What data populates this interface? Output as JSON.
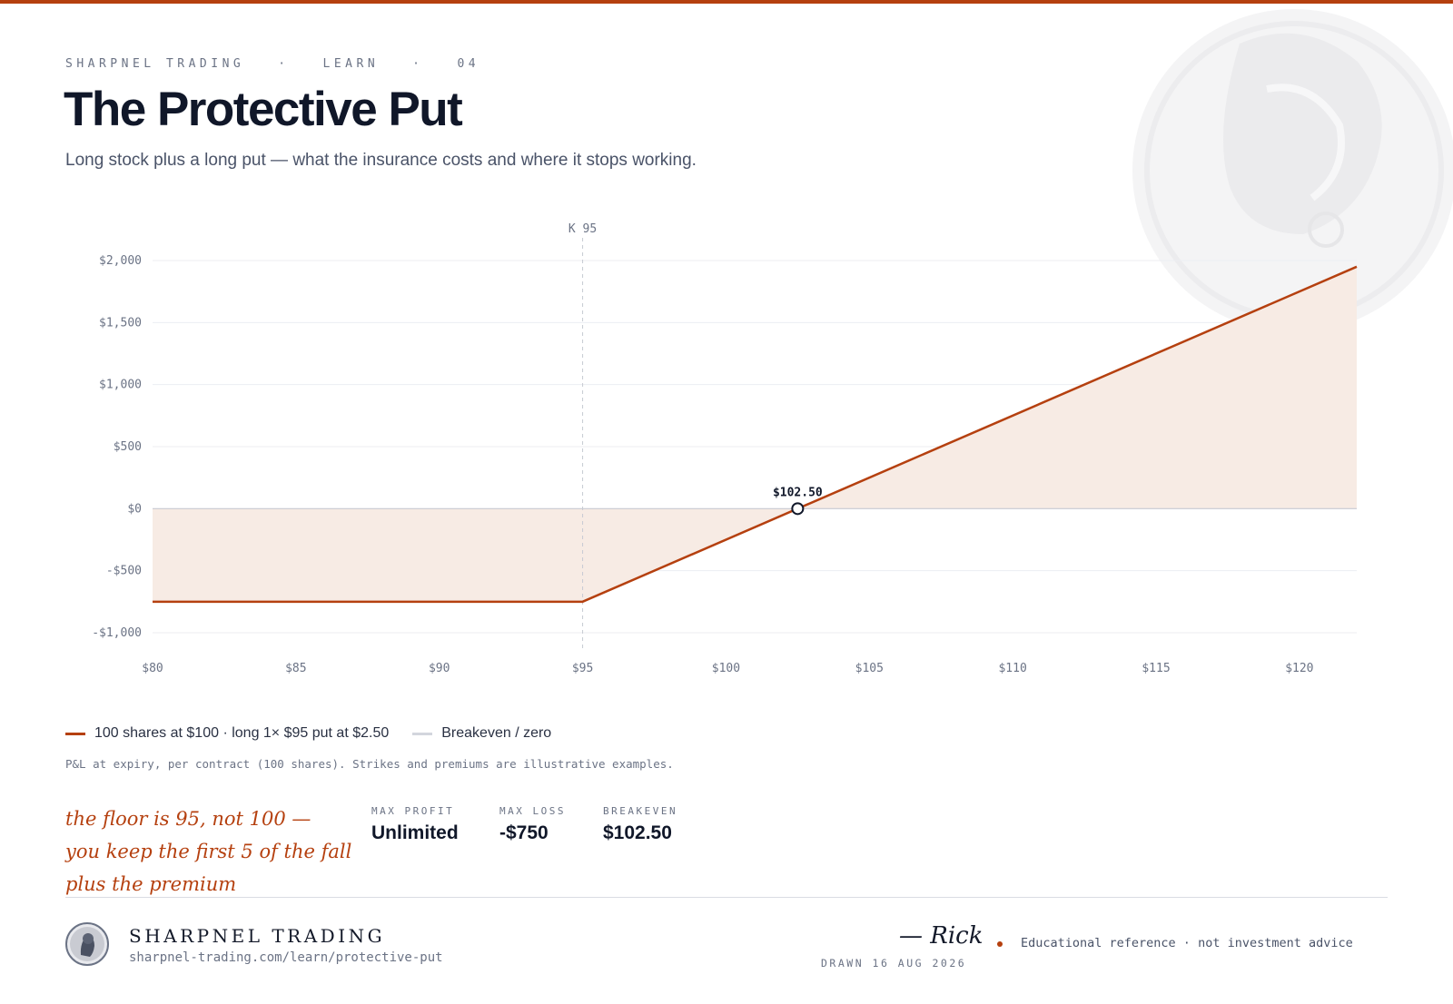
{
  "header": {
    "eyebrow_brand": "SHARPNEL TRADING",
    "eyebrow_section": "LEARN",
    "eyebrow_number": "04",
    "eyebrow_separator": "·",
    "title": "The Protective Put",
    "subtitle": "Long stock plus a long put — what the insurance costs and where it stops working."
  },
  "chart_data": {
    "type": "line",
    "x_tick_labels": [
      "$80",
      "$85",
      "$90",
      "$95",
      "$100",
      "$105",
      "$110",
      "$115",
      "$120"
    ],
    "x_ticks": [
      80,
      85,
      90,
      95,
      100,
      105,
      110,
      115,
      120
    ],
    "y_tick_labels": [
      "$2,000",
      "$1,500",
      "$1,000",
      "$500",
      "$0",
      "-$500",
      "-$1,000"
    ],
    "y_ticks": [
      2000,
      1500,
      1000,
      500,
      0,
      -500,
      -1000
    ],
    "xlim": [
      80,
      122
    ],
    "ylim": [
      -1000,
      2000
    ],
    "grid": true,
    "series": [
      {
        "name": "100 shares at $100 · long 1× $95 put at $2.50",
        "x": [
          80,
          95,
          122
        ],
        "y": [
          -750,
          -750,
          1950
        ],
        "color": "#b5400f"
      }
    ],
    "zero_line": {
      "name": "Breakeven / zero",
      "color": "#d3d6dd"
    },
    "strike_marker": {
      "x": 95,
      "label": "K 95"
    },
    "breakeven_marker": {
      "x": 102.5,
      "y": 0,
      "label": "$102.50"
    }
  },
  "legend": {
    "series_label": "100 shares at $100 · long 1× $95 put at $2.50",
    "zero_label": "Breakeven / zero",
    "series_color": "#b5400f",
    "zero_color": "#d3d6dd"
  },
  "footnote": "P&L at expiry, per contract (100 shares). Strikes and premiums are illustrative examples.",
  "note": {
    "lines": [
      "the floor is 95, not 100 —",
      "you keep the first 5 of the fall",
      "plus the premium"
    ]
  },
  "stats": [
    {
      "label": "MAX PROFIT",
      "value": "Unlimited"
    },
    {
      "label": "MAX LOSS",
      "value": "-$750"
    },
    {
      "label": "BREAKEVEN",
      "value": "$102.50"
    }
  ],
  "footer": {
    "brand": "SHARPNEL TRADING",
    "url": "sharpnel-trading.com/learn/protective-put",
    "signature": "— Rick",
    "drawn": "DRAWN 16 AUG 2026",
    "disclaimer": "Educational reference · not investment advice"
  },
  "colors": {
    "accent": "#b5400f",
    "fill": "#f7ebe4",
    "text": "#101729",
    "muted": "#6b7385"
  }
}
